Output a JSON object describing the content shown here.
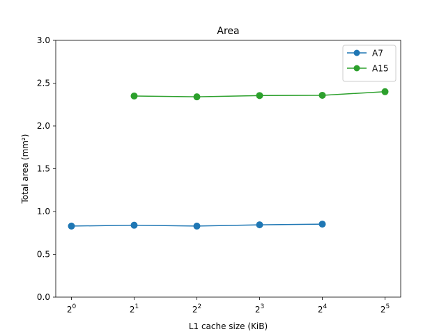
{
  "chart_data": {
    "type": "line",
    "title": "Area",
    "xlabel": "L1 cache size (KiB)",
    "ylabel": "Total area (mm²)",
    "xscale": "log2",
    "x_tick_labels": [
      {
        "base": "2",
        "exp": "0"
      },
      {
        "base": "2",
        "exp": "1"
      },
      {
        "base": "2",
        "exp": "2"
      },
      {
        "base": "2",
        "exp": "3"
      },
      {
        "base": "2",
        "exp": "4"
      },
      {
        "base": "2",
        "exp": "5"
      }
    ],
    "x_ticks": [
      1,
      2,
      4,
      8,
      16,
      32
    ],
    "y_ticks": [
      "0.0",
      "0.5",
      "1.0",
      "1.5",
      "2.0",
      "2.5",
      "3.0"
    ],
    "ylim": [
      0,
      3
    ],
    "grid": false,
    "legend_position": "top-right",
    "series": [
      {
        "name": "A7",
        "color": "#1f77b4",
        "x": [
          1,
          2,
          4,
          8,
          16
        ],
        "y": [
          0.83,
          0.84,
          0.83,
          0.845,
          0.853
        ]
      },
      {
        "name": "A15",
        "color": "#2ca02c",
        "x": [
          2,
          4,
          8,
          16,
          32
        ],
        "y": [
          2.35,
          2.34,
          2.355,
          2.358,
          2.4
        ]
      }
    ]
  }
}
